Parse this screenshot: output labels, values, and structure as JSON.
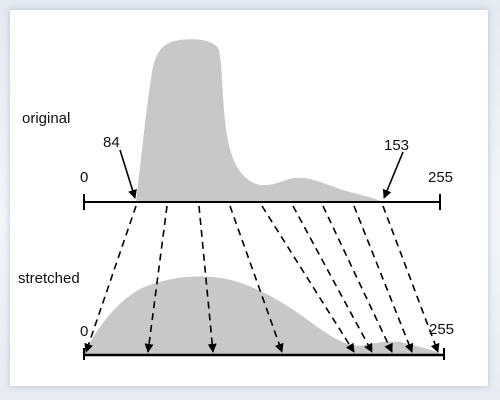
{
  "labels": {
    "original": "original",
    "stretched": "stretched",
    "orig_min": "0",
    "orig_max": "255",
    "marker_low": "84",
    "marker_high": "153",
    "str_min": "0",
    "str_max": "255"
  },
  "colors": {
    "histogram_fill": "#c8c8c8",
    "axis": "#000000",
    "arrows": "#000000",
    "background": "#ffffff"
  },
  "mapping": {
    "original_range": [
      84,
      153
    ],
    "stretched_range": [
      0,
      255
    ],
    "arrow_count": 9
  }
}
